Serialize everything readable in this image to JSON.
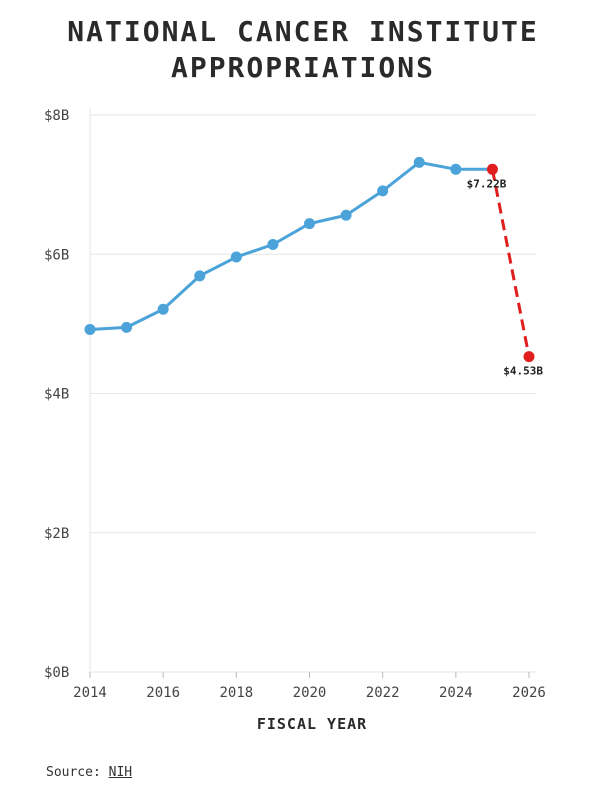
{
  "title_lines": [
    "NATIONAL CANCER INSTITUTE",
    "APPROPRIATIONS"
  ],
  "source": {
    "label": "Source:",
    "link_text": "NIH"
  },
  "colors": {
    "line": "#4ba3d9",
    "highlight": "#e01e1e",
    "grid": "#e6e6e6",
    "text": "#333333"
  },
  "chart_data": {
    "type": "line",
    "title": "NATIONAL CANCER INSTITUTE APPROPRIATIONS",
    "xlabel": "FISCAL YEAR",
    "ylabel": "",
    "xlim": [
      2014,
      2026
    ],
    "ylim": [
      0,
      8
    ],
    "x_ticks": [
      2014,
      2016,
      2018,
      2020,
      2022,
      2024,
      2026
    ],
    "x_tick_labels": [
      "2014",
      "2016",
      "2018",
      "2020",
      "2022",
      "2024",
      "2026"
    ],
    "y_ticks": [
      0,
      2,
      4,
      6,
      8
    ],
    "y_tick_labels": [
      "$0B",
      "$2B",
      "$4B",
      "$6B",
      "$8B"
    ],
    "grid": true,
    "series": [
      {
        "style": "solid",
        "color": "#4ba3d9",
        "x": [
          2014,
          2015,
          2016,
          2017,
          2018,
          2019,
          2020,
          2021,
          2022,
          2023,
          2024,
          2025
        ],
        "y": [
          4.92,
          4.95,
          5.21,
          5.69,
          5.96,
          6.14,
          6.44,
          6.56,
          6.91,
          7.32,
          7.22,
          7.22
        ]
      },
      {
        "style": "dashed",
        "color": "#e01e1e",
        "x": [
          2025,
          2026
        ],
        "y": [
          7.22,
          4.53
        ]
      }
    ],
    "annotations": [
      {
        "x": 2025,
        "y": 7.22,
        "text": "$7.22B"
      },
      {
        "x": 2026,
        "y": 4.53,
        "text": "$4.53B"
      }
    ]
  }
}
